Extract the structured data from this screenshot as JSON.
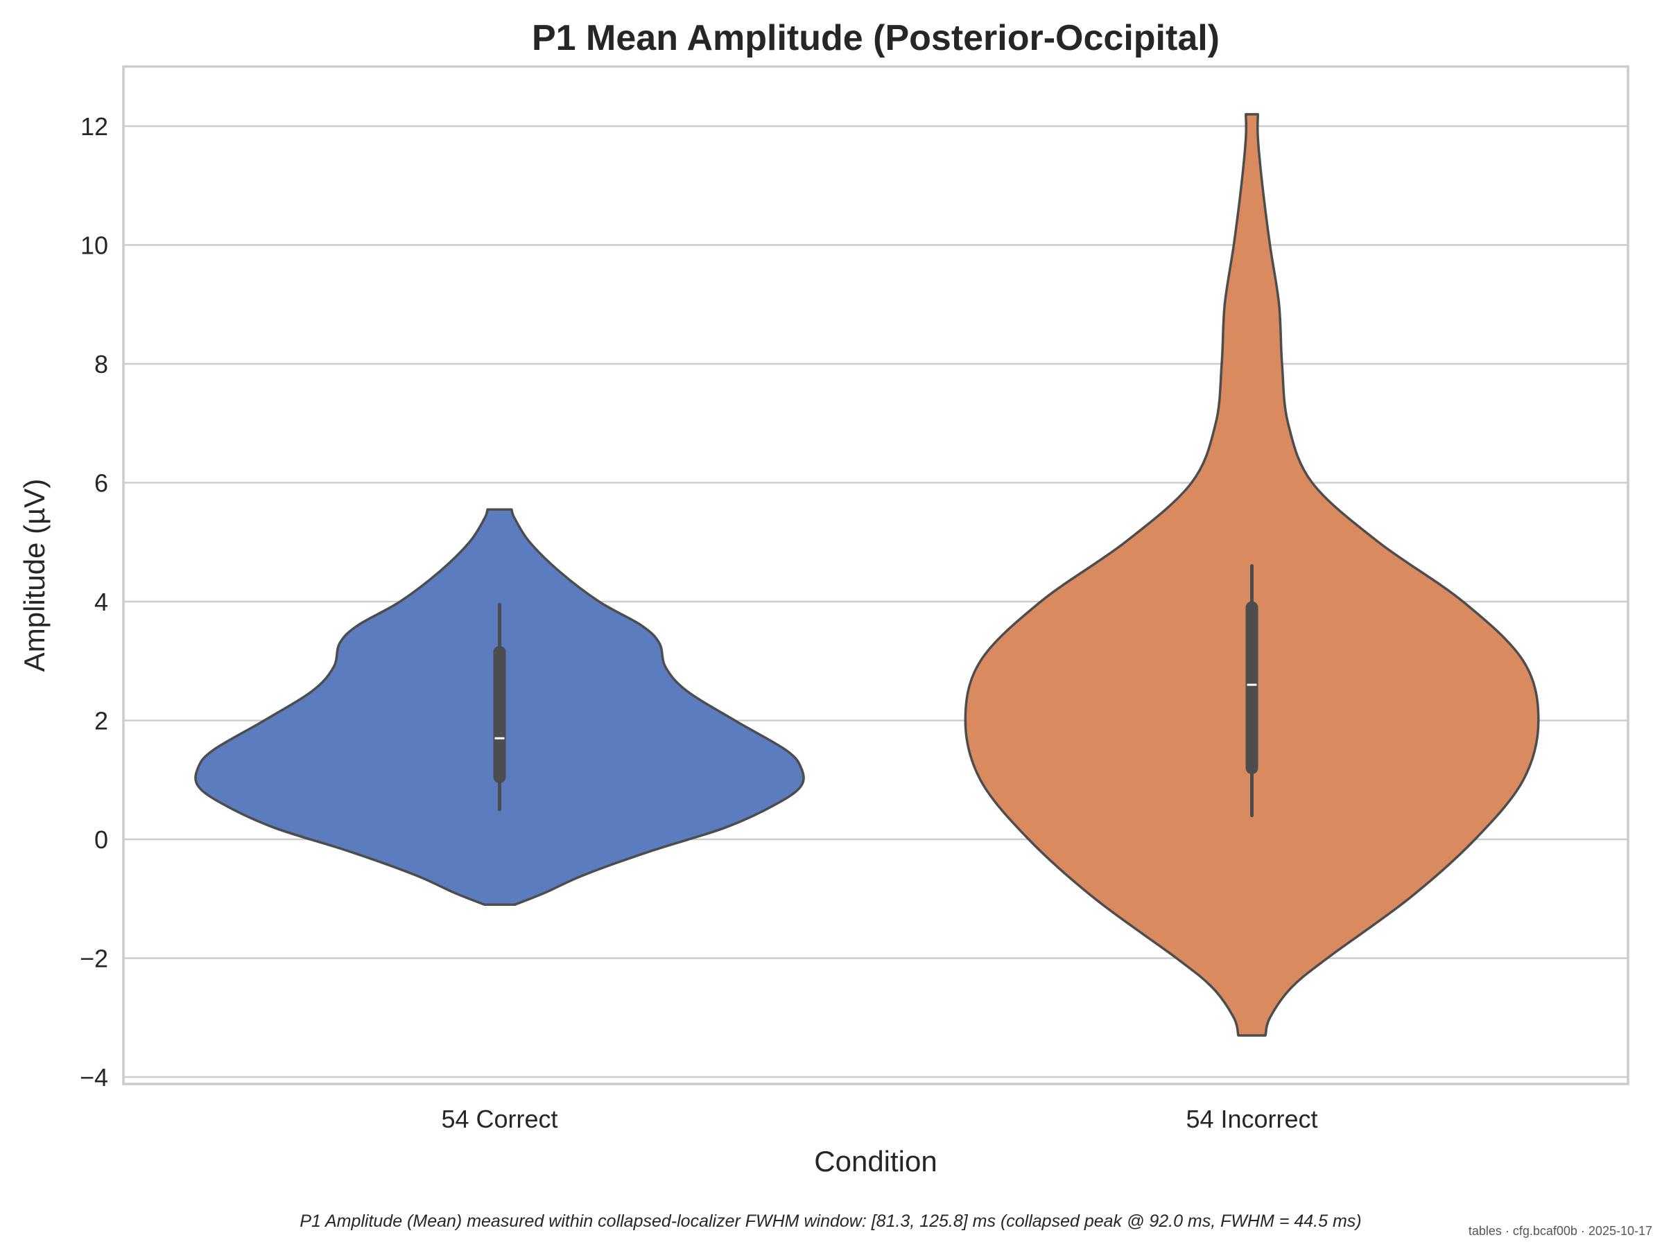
{
  "chart_data": {
    "type": "violin",
    "title": "P1 Mean Amplitude (Posterior-Occipital)",
    "xlabel": "Condition",
    "ylabel": "Amplitude (µV)",
    "ylim": [
      -4.1,
      13.0
    ],
    "yticks": [
      -4,
      -2,
      0,
      2,
      4,
      6,
      8,
      10,
      12
    ],
    "ytick_labels": [
      "−4",
      "−2",
      "0",
      "2",
      "4",
      "6",
      "8",
      "10",
      "12"
    ],
    "grid": "horizontal",
    "categories": [
      "54 Correct",
      "54 Incorrect"
    ],
    "series": [
      {
        "category": "54 Correct",
        "color": "#5b7cbf",
        "min": -1.1,
        "max": 5.55,
        "q1": 1.05,
        "median": 1.7,
        "q3": 3.15,
        "whisker_low": 0.5,
        "whisker_high": 3.95,
        "density": [
          [
            -1.1,
            0.05
          ],
          [
            -0.9,
            0.15
          ],
          [
            -0.6,
            0.28
          ],
          [
            -0.2,
            0.5
          ],
          [
            0.2,
            0.75
          ],
          [
            0.6,
            0.92
          ],
          [
            0.9,
            1.0
          ],
          [
            1.2,
            1.0
          ],
          [
            1.5,
            0.95
          ],
          [
            2.0,
            0.78
          ],
          [
            2.5,
            0.62
          ],
          [
            2.9,
            0.55
          ],
          [
            3.3,
            0.53
          ],
          [
            3.6,
            0.47
          ],
          [
            4.0,
            0.33
          ],
          [
            4.5,
            0.2
          ],
          [
            5.0,
            0.1
          ],
          [
            5.4,
            0.05
          ],
          [
            5.55,
            0.04
          ]
        ]
      },
      {
        "category": "54 Incorrect",
        "color": "#d98b5f",
        "min": -3.3,
        "max": 12.2,
        "q1": 1.2,
        "median": 2.6,
        "q3": 3.9,
        "whisker_low": 0.4,
        "whisker_high": 4.6,
        "density": [
          [
            -3.3,
            0.045
          ],
          [
            -3.0,
            0.06
          ],
          [
            -2.5,
            0.13
          ],
          [
            -2.0,
            0.25
          ],
          [
            -1.0,
            0.52
          ],
          [
            0,
            0.74
          ],
          [
            1.0,
            0.9
          ],
          [
            2.0,
            0.95
          ],
          [
            3.0,
            0.9
          ],
          [
            4.0,
            0.7
          ],
          [
            5.0,
            0.42
          ],
          [
            6.0,
            0.2
          ],
          [
            7.0,
            0.12
          ],
          [
            8.0,
            0.1
          ],
          [
            9.0,
            0.09
          ],
          [
            10.0,
            0.06
          ],
          [
            11.0,
            0.035
          ],
          [
            11.8,
            0.02
          ],
          [
            12.2,
            0.02
          ]
        ]
      }
    ]
  },
  "caption": "P1 Amplitude (Mean) measured within collapsed-localizer FWHM window: [81.3, 125.8] ms (collapsed peak @ 92.0 ms, FWHM = 44.5 ms)",
  "stamp": "tables · cfg.bcaf00b · 2025-10-17"
}
